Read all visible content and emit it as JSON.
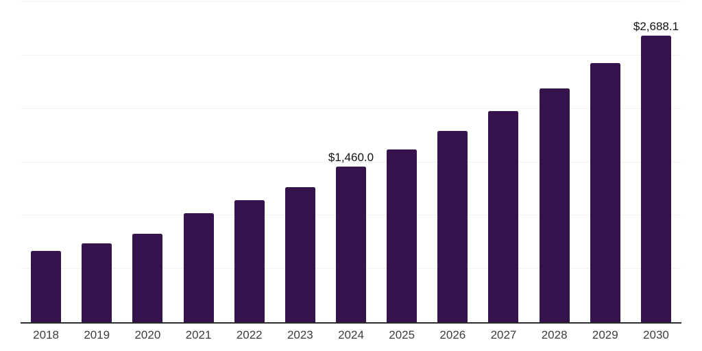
{
  "chart_data": {
    "type": "bar",
    "title": "",
    "xlabel": "",
    "ylabel": "",
    "categories": [
      "2018",
      "2019",
      "2020",
      "2021",
      "2022",
      "2023",
      "2024",
      "2025",
      "2026",
      "2027",
      "2028",
      "2029",
      "2030"
    ],
    "values": [
      667.0,
      737.0,
      830.0,
      1019.0,
      1141.0,
      1263.0,
      1460.0,
      1616.3,
      1789.4,
      1981.0,
      2193.1,
      2428.0,
      2688.1
    ],
    "bar_labels": [
      "",
      "",
      "",
      "",
      "",
      "",
      "$1,460.0",
      "",
      "",
      "",
      "",
      "",
      "$2,688.1"
    ],
    "ylim": [
      0,
      3000
    ],
    "grid_step": 500,
    "gridlines": "horizontal",
    "y_tick_labels": "none",
    "legend": "none"
  },
  "colors": {
    "bar": "#35134D",
    "grid_line": "#F1F1F1",
    "axis_line": "#2B2B2B",
    "tick_label": "#3D3D3D",
    "data_label": "#111111",
    "background": "#FFFFFF"
  }
}
